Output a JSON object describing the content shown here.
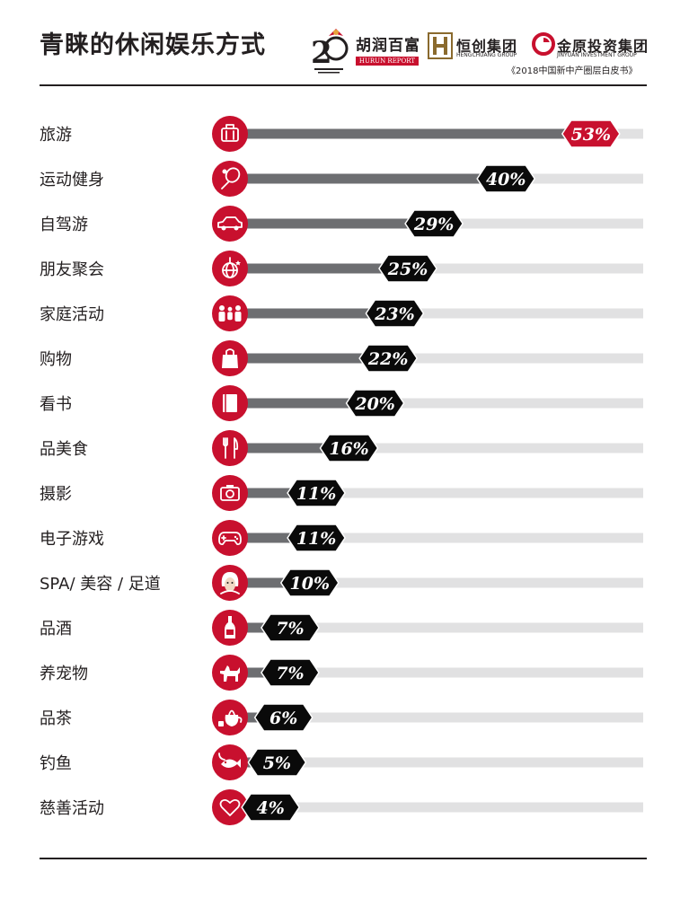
{
  "header": {
    "title": "青睐的休闲娱乐方式",
    "subtitle": "《2018中国新中产圈层白皮书》",
    "logos": [
      {
        "name": "胡润百富",
        "subtext": "HURUN REPORT"
      },
      {
        "name": "恒创集团",
        "subtext": "HENGCHUANG GROUP"
      },
      {
        "name": "金原投资集团",
        "subtext": "JINYUAN INVESTMENT GROUP"
      }
    ]
  },
  "colors": {
    "accent": "#c8102e",
    "bar": "#6d6e71",
    "track": "#e1e1e2",
    "badge": "#0a0a0a",
    "text": "#231f20"
  },
  "chart_data": {
    "type": "bar",
    "orientation": "horizontal",
    "categories": [
      "旅游",
      "运动健身",
      "自驾游",
      "朋友聚会",
      "家庭活动",
      "购物",
      "看书",
      "品美食",
      "摄影",
      "电子游戏",
      "SPA/ 美容 / 足道",
      "品酒",
      "养宠物",
      "品茶",
      "钓鱼",
      "慈善活动"
    ],
    "values": [
      53,
      40,
      29,
      25,
      23,
      22,
      20,
      16,
      11,
      11,
      10,
      7,
      7,
      6,
      5,
      4
    ],
    "value_labels": [
      "53%",
      "40%",
      "29%",
      "25%",
      "23%",
      "22%",
      "20%",
      "16%",
      "11%",
      "11%",
      "10%",
      "7%",
      "7%",
      "6%",
      "5%",
      "4%"
    ],
    "icons": [
      "luggage-icon",
      "racket-icon",
      "car-icon",
      "disco-ball-icon",
      "family-icon",
      "shopping-bag-icon",
      "book-icon",
      "cutlery-icon",
      "camera-icon",
      "gamepad-icon",
      "face-mask-icon",
      "wine-icon",
      "dog-icon",
      "teapot-icon",
      "fish-icon",
      "heart-icon"
    ],
    "xlim": [
      0,
      100
    ],
    "unit": "%",
    "highlight_index": 0
  }
}
